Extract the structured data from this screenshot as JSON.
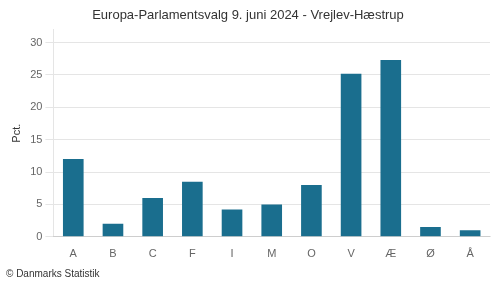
{
  "chart_data": {
    "type": "bar",
    "title": "Europa-Parlamentsvalg 9. juni 2024 - Vrejlev-Hæstrup",
    "ylabel": "Pct.",
    "footer": "© Danmarks Statistik",
    "categories": [
      "A",
      "B",
      "C",
      "F",
      "I",
      "M",
      "O",
      "V",
      "Æ",
      "Ø",
      "Å"
    ],
    "values": [
      12.0,
      2.0,
      6.0,
      8.5,
      4.2,
      5.0,
      8.0,
      25.2,
      27.3,
      1.5,
      1.0
    ],
    "color": "#1a6e8e",
    "ylim": [
      0,
      32
    ],
    "yticks": [
      0,
      5,
      10,
      15,
      20,
      25,
      30
    ],
    "grid": true
  }
}
